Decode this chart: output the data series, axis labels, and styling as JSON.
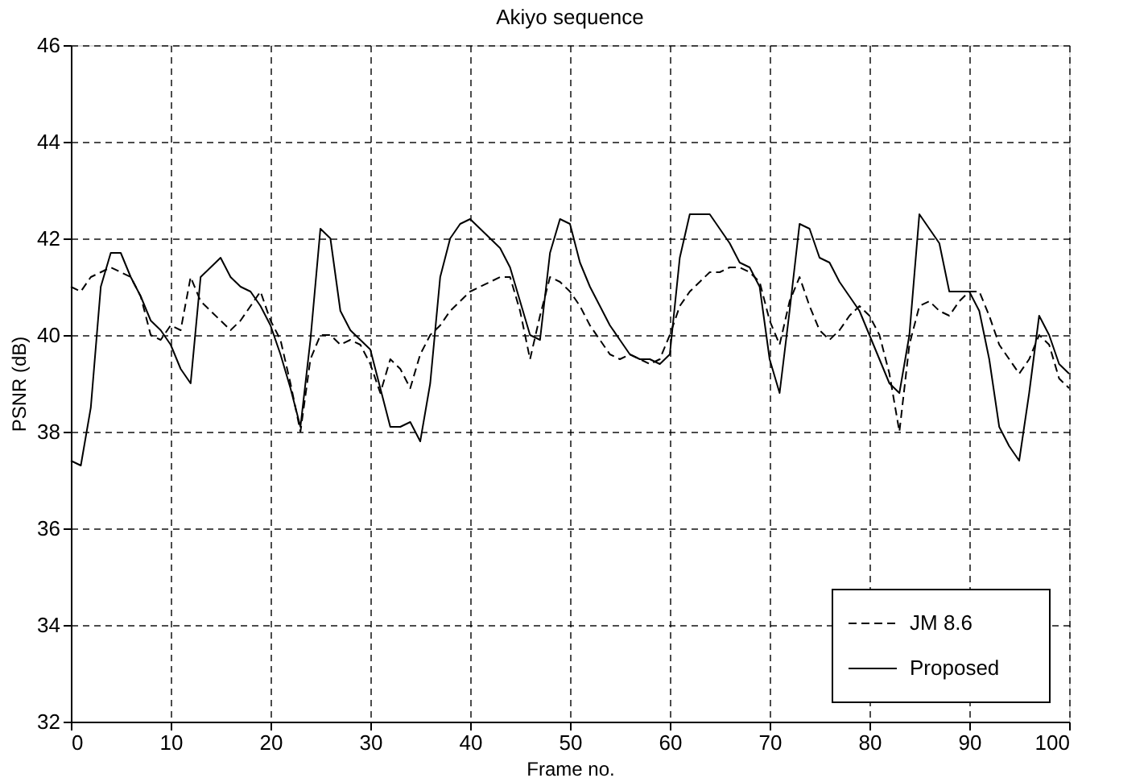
{
  "chart_data": {
    "type": "line",
    "title": "Akiyo sequence",
    "xlabel": "Frame no.",
    "ylabel": "PSNR (dB)",
    "x": [
      0,
      1,
      2,
      3,
      4,
      5,
      6,
      7,
      8,
      9,
      10,
      11,
      12,
      13,
      14,
      15,
      16,
      17,
      18,
      19,
      20,
      21,
      22,
      23,
      24,
      25,
      26,
      27,
      28,
      29,
      30,
      31,
      32,
      33,
      34,
      35,
      36,
      37,
      38,
      39,
      40,
      41,
      42,
      43,
      44,
      45,
      46,
      47,
      48,
      49,
      50,
      51,
      52,
      53,
      54,
      55,
      56,
      57,
      58,
      59,
      60,
      61,
      62,
      63,
      64,
      65,
      66,
      67,
      68,
      69,
      70,
      71,
      72,
      73,
      74,
      75,
      76,
      77,
      78,
      79,
      80,
      81,
      82,
      83,
      84,
      85,
      86,
      87,
      88,
      89,
      90,
      91,
      92,
      93,
      94,
      95,
      96,
      97,
      98,
      99,
      100
    ],
    "series": [
      {
        "name": "JM 8.6",
        "color": "#000000",
        "line_style": "dashed",
        "values": [
          41.0,
          40.9,
          41.2,
          41.3,
          41.4,
          41.3,
          41.2,
          40.8,
          40.0,
          39.9,
          40.2,
          40.1,
          41.2,
          40.7,
          40.5,
          40.3,
          40.1,
          40.3,
          40.6,
          40.9,
          40.3,
          39.9,
          39.0,
          38.0,
          39.5,
          40.0,
          40.0,
          39.8,
          39.9,
          39.8,
          39.4,
          38.8,
          39.5,
          39.3,
          38.9,
          39.6,
          40.0,
          40.2,
          40.5,
          40.7,
          40.9,
          41.0,
          41.1,
          41.2,
          41.2,
          40.5,
          39.5,
          40.4,
          41.2,
          41.1,
          40.9,
          40.6,
          40.2,
          39.9,
          39.6,
          39.5,
          39.6,
          39.5,
          39.4,
          39.5,
          40.0,
          40.6,
          40.9,
          41.1,
          41.3,
          41.3,
          41.4,
          41.4,
          41.3,
          41.1,
          40.3,
          39.8,
          40.7,
          41.2,
          40.6,
          40.1,
          39.9,
          40.1,
          40.4,
          40.6,
          40.4,
          40.0,
          39.2,
          38.0,
          39.8,
          40.6,
          40.7,
          40.5,
          40.4,
          40.7,
          40.9,
          40.9,
          40.4,
          39.8,
          39.5,
          39.2,
          39.5,
          40.0,
          39.8,
          39.1,
          38.9
        ]
      },
      {
        "name": "Proposed",
        "color": "#000000",
        "line_style": "solid",
        "values": [
          37.4,
          37.3,
          38.5,
          41.0,
          41.7,
          41.7,
          41.2,
          40.8,
          40.3,
          40.1,
          39.8,
          39.3,
          39.0,
          41.2,
          41.4,
          41.6,
          41.2,
          41.0,
          40.9,
          40.6,
          40.2,
          39.6,
          38.9,
          38.1,
          39.9,
          42.2,
          42.0,
          40.5,
          40.1,
          39.9,
          39.7,
          38.9,
          38.1,
          38.1,
          38.2,
          37.8,
          39.0,
          41.2,
          42.0,
          42.3,
          42.4,
          42.2,
          42.0,
          41.8,
          41.4,
          40.7,
          40.0,
          39.9,
          41.7,
          42.4,
          42.3,
          41.5,
          41.0,
          40.6,
          40.2,
          39.9,
          39.6,
          39.5,
          39.5,
          39.4,
          39.6,
          41.6,
          42.5,
          42.5,
          42.5,
          42.2,
          41.9,
          41.5,
          41.4,
          41.0,
          39.5,
          38.8,
          40.5,
          42.3,
          42.2,
          41.6,
          41.5,
          41.1,
          40.8,
          40.5,
          40.0,
          39.5,
          39.0,
          38.8,
          40.0,
          42.5,
          42.2,
          41.9,
          40.9,
          40.9,
          40.9,
          40.5,
          39.5,
          38.1,
          37.7,
          37.4,
          38.8,
          40.4,
          40.0,
          39.4,
          39.2
        ]
      }
    ],
    "xlim": [
      0,
      100
    ],
    "xticks": [
      0,
      10,
      20,
      30,
      40,
      50,
      60,
      70,
      80,
      90,
      100
    ],
    "ylim": [
      32,
      46
    ],
    "yticks": [
      32,
      34,
      36,
      38,
      40,
      42,
      44,
      46
    ],
    "grid": true,
    "legend": "bottom right",
    "marker": "none"
  }
}
